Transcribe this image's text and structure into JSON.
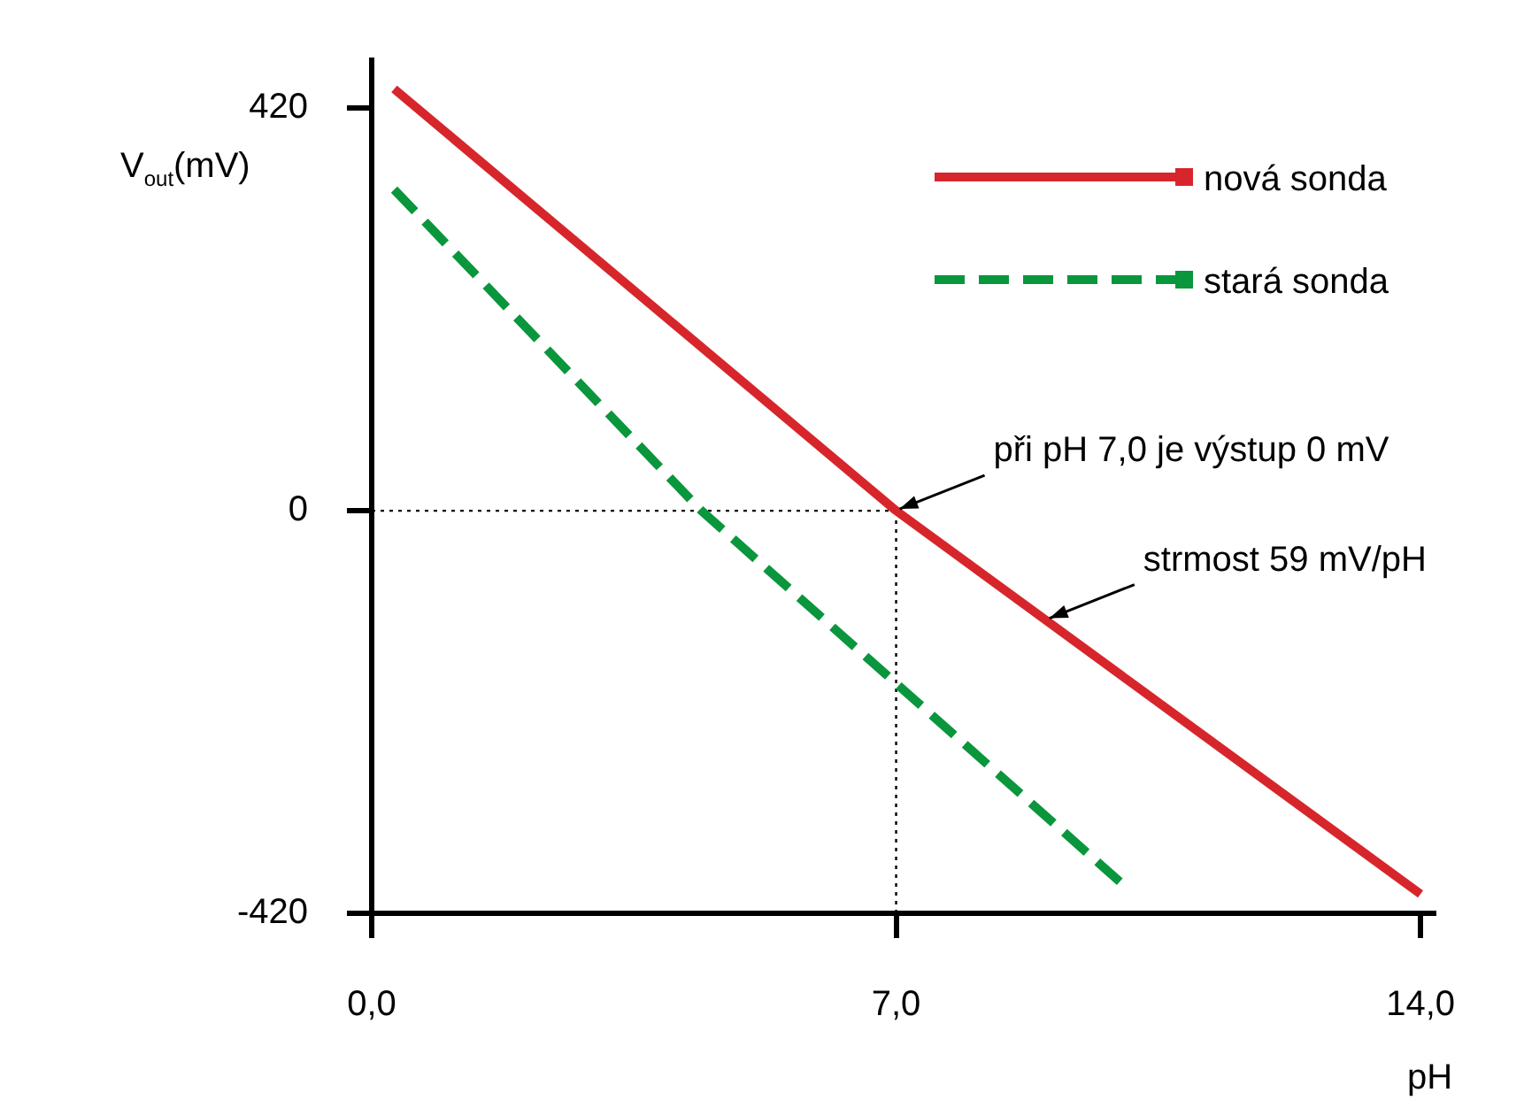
{
  "chart_data": {
    "type": "line",
    "xlabel": "pH",
    "ylabel": "V$_{out}$(mV)",
    "xlim": [
      0,
      14.2
    ],
    "xticks": [
      {
        "value": 0,
        "label": "0,0"
      },
      {
        "value": 7,
        "label": "7,0"
      },
      {
        "value": 14,
        "label": "14,0"
      }
    ],
    "ylim": [
      -420,
      470
    ],
    "yticks": [
      420,
      0,
      -420
    ],
    "grid": false,
    "legend": "top right",
    "marker": "none",
    "series": [
      {
        "name": "nová sonda",
        "color": "#d7262b",
        "x": [
          0.3,
          7,
          14
        ],
        "values": [
          440,
          0,
          -400
        ],
        "line_style": "solid"
      },
      {
        "name": "stará sonda",
        "color": "#0a963c",
        "x": [
          0.3,
          4.4,
          10.1
        ],
        "values": [
          335,
          0,
          -395
        ],
        "line_style": "dashed"
      }
    ],
    "ref_lines": [
      {
        "axis": "y",
        "value": 0,
        "line_style": "dotted"
      },
      {
        "axis": "x",
        "value": 7,
        "line_style": "dotted"
      }
    ],
    "annotations": [
      {
        "text": "při pH 7,0 je výstup 0 mV",
        "x": 7,
        "y": 0
      },
      {
        "text": "strmost 59 mV/pH",
        "x": 9,
        "y": -114
      }
    ]
  }
}
